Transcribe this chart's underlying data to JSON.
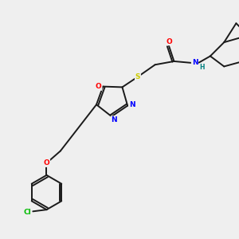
{
  "background_color": "#efefef",
  "bond_color": "#1a1a1a",
  "atom_colors": {
    "O": "#ff0000",
    "N": "#0000ff",
    "S": "#cccc00",
    "Cl": "#00bb00",
    "H": "#008080",
    "C": "#1a1a1a"
  },
  "figsize": [
    3.0,
    3.0
  ],
  "dpi": 100
}
